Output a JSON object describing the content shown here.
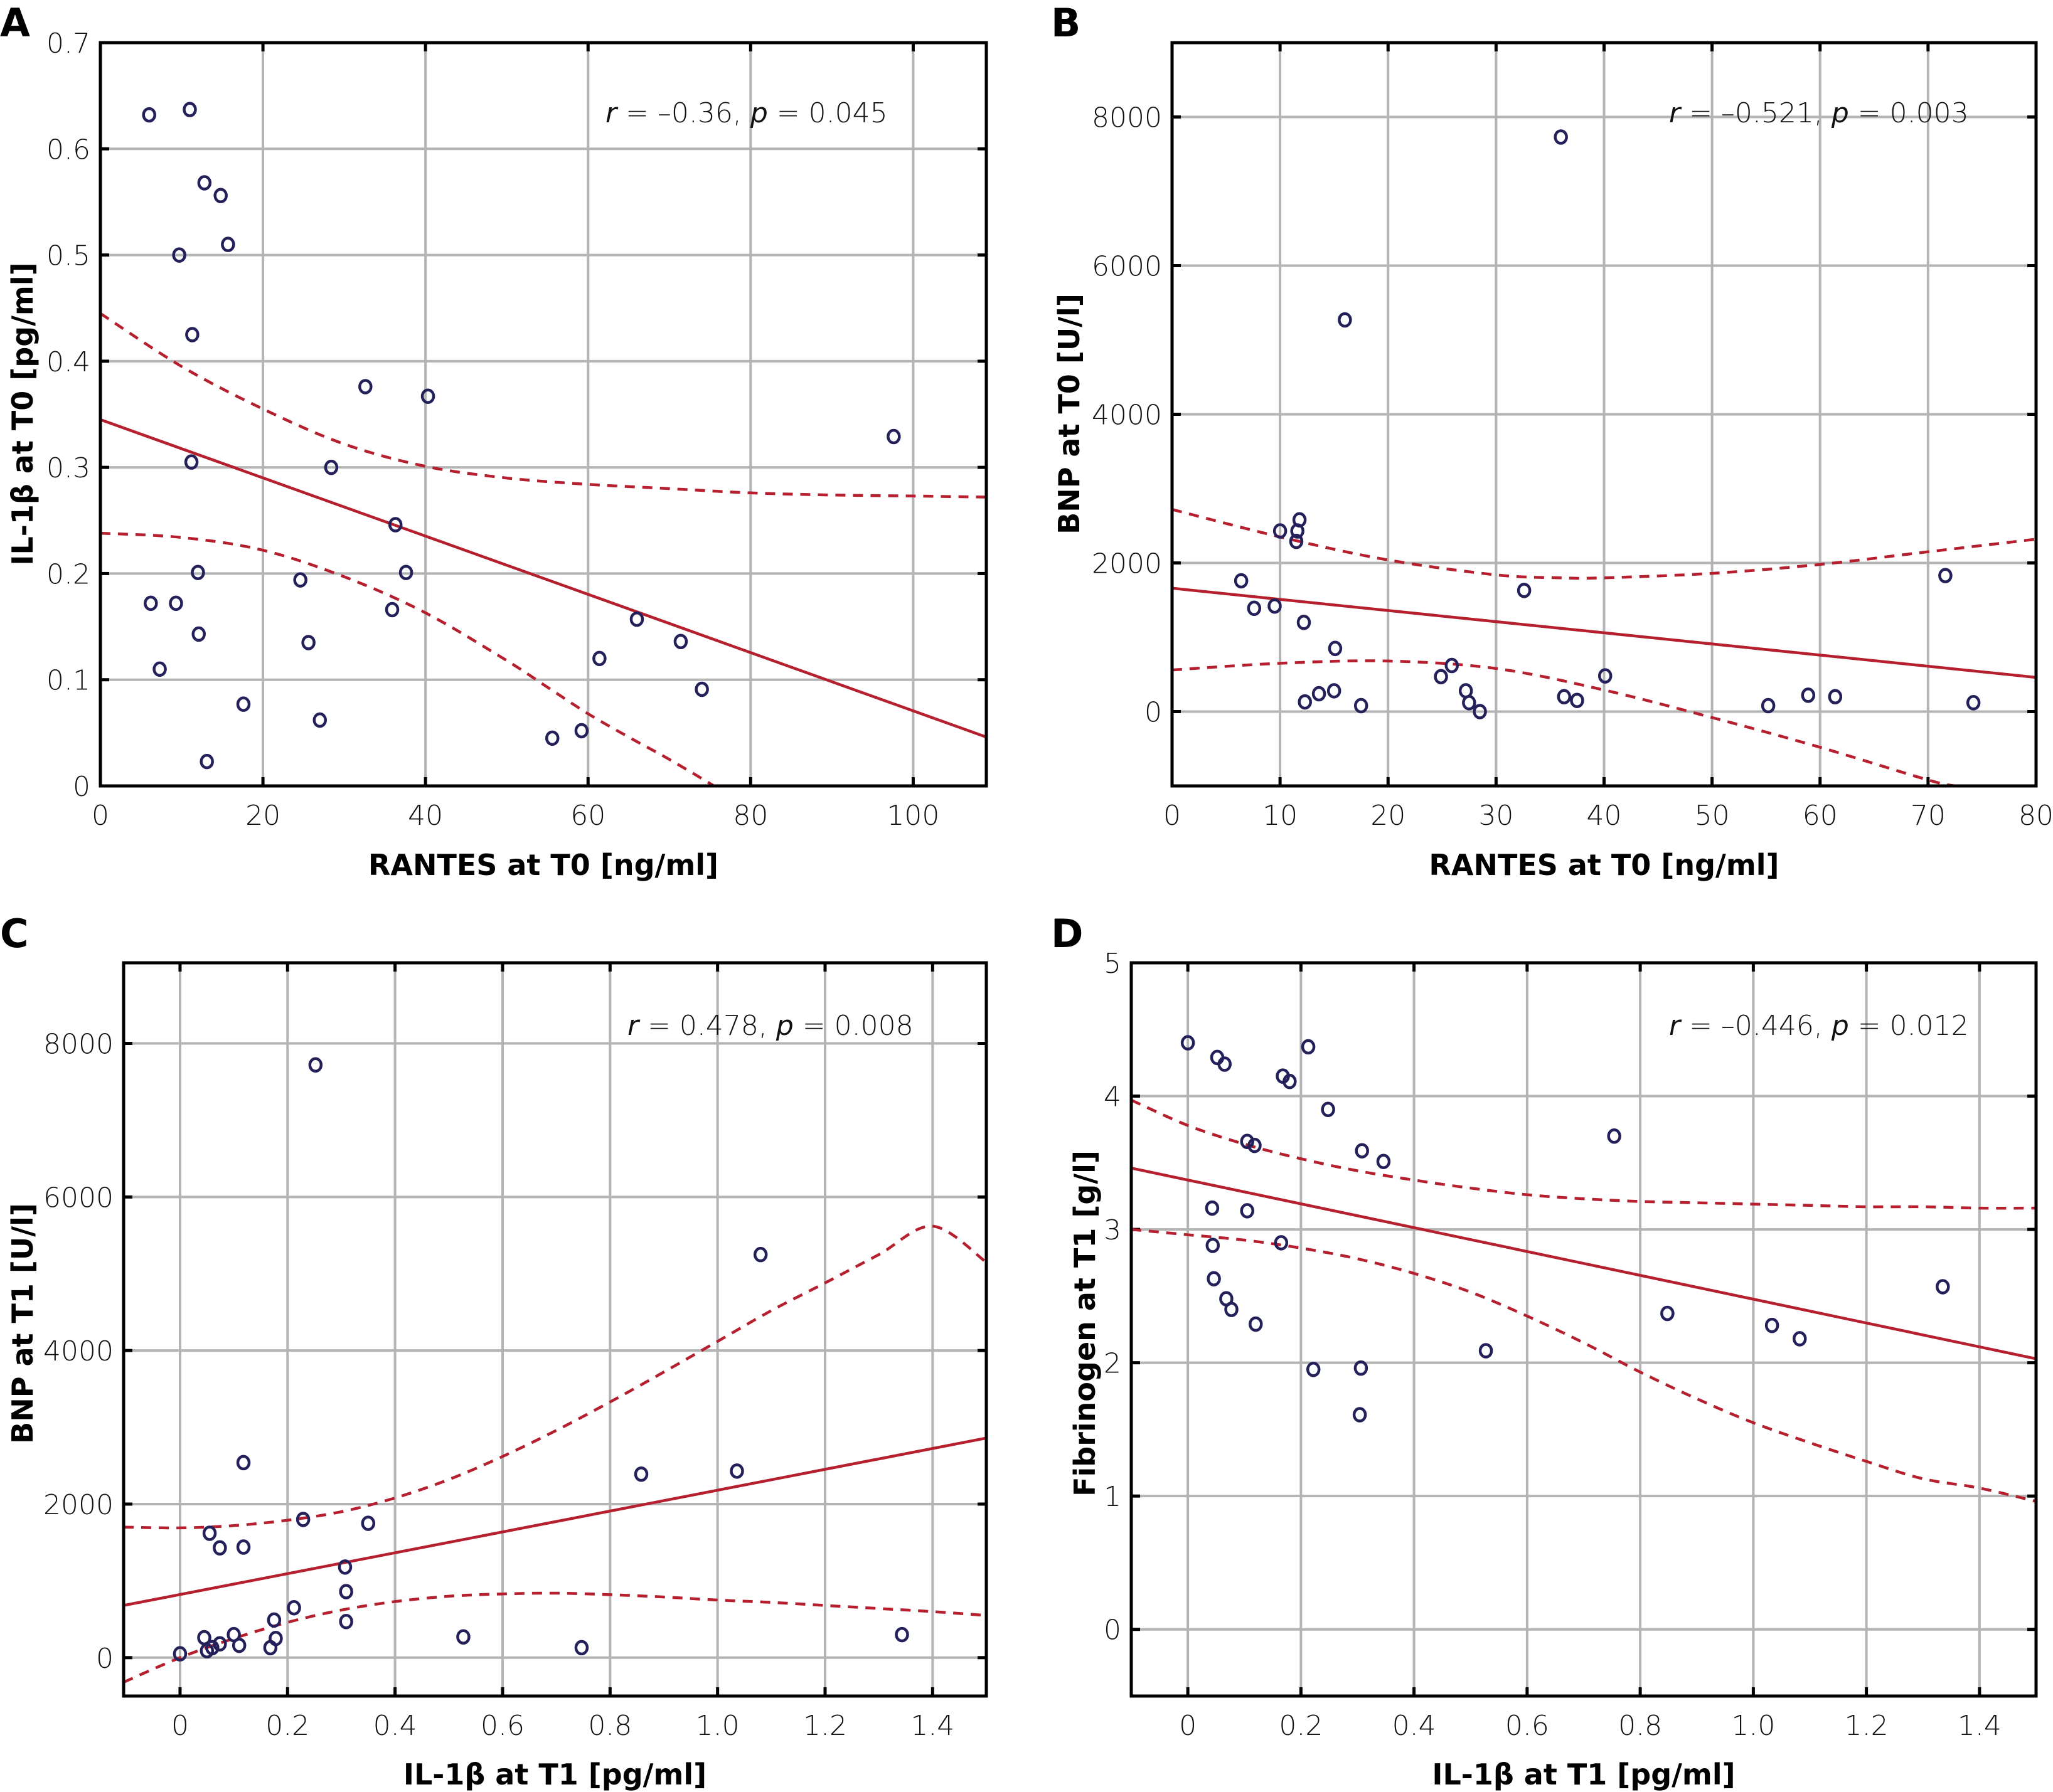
{
  "chart_data": [
    {
      "panel": "A",
      "type": "scatter",
      "title": "",
      "xlabel": "RANTES at T0 [ng/ml]",
      "ylabel": "IL-1β at T0 [pg/ml]",
      "xlim": [
        0,
        109
      ],
      "ylim": [
        0,
        0.7
      ],
      "xticks": [
        0,
        20,
        40,
        60,
        80,
        100
      ],
      "yticks": [
        0,
        0.1,
        0.2,
        0.3,
        0.4,
        0.5,
        0.6,
        0.7
      ],
      "xtick_labels": [
        "0",
        "20",
        "40",
        "60",
        "80",
        "100"
      ],
      "ytick_labels": [
        "0",
        "0.1",
        "0.2",
        "0.3",
        "0.4",
        "0.5",
        "0.6",
        "0.7"
      ],
      "grid": true,
      "annotation": {
        "r_label": "r",
        "r_value": "–0.36",
        "p_label": "p",
        "p_value": "0.045"
      },
      "points": [
        [
          6.0,
          0.632
        ],
        [
          11.0,
          0.637
        ],
        [
          12.8,
          0.568
        ],
        [
          14.8,
          0.556
        ],
        [
          15.7,
          0.51
        ],
        [
          9.7,
          0.5
        ],
        [
          11.3,
          0.425
        ],
        [
          11.2,
          0.305
        ],
        [
          12.0,
          0.201
        ],
        [
          6.2,
          0.172
        ],
        [
          9.3,
          0.172
        ],
        [
          12.1,
          0.143
        ],
        [
          7.3,
          0.11
        ],
        [
          17.6,
          0.077
        ],
        [
          13.1,
          0.023
        ],
        [
          32.6,
          0.376
        ],
        [
          40.3,
          0.367
        ],
        [
          28.4,
          0.3
        ],
        [
          36.3,
          0.246
        ],
        [
          37.6,
          0.201
        ],
        [
          24.6,
          0.194
        ],
        [
          35.9,
          0.166
        ],
        [
          25.6,
          0.135
        ],
        [
          27.0,
          0.062
        ],
        [
          55.6,
          0.045
        ],
        [
          59.2,
          0.052
        ],
        [
          61.4,
          0.12
        ],
        [
          66.0,
          0.157
        ],
        [
          71.4,
          0.136
        ],
        [
          74.0,
          0.091
        ],
        [
          97.6,
          0.329
        ]
      ],
      "fit_line": [
        [
          0,
          0.345
        ],
        [
          109,
          0.046
        ]
      ],
      "ci_upper": [
        [
          0,
          0.445
        ],
        [
          10,
          0.395
        ],
        [
          20,
          0.355
        ],
        [
          30,
          0.322
        ],
        [
          40,
          0.301
        ],
        [
          50,
          0.29
        ],
        [
          60,
          0.284
        ],
        [
          70,
          0.28
        ],
        [
          80,
          0.276
        ],
        [
          90,
          0.274
        ],
        [
          100,
          0.273
        ],
        [
          109,
          0.272
        ]
      ],
      "ci_lower": [
        [
          0,
          0.238
        ],
        [
          10,
          0.234
        ],
        [
          20,
          0.222
        ],
        [
          30,
          0.197
        ],
        [
          40,
          0.163
        ],
        [
          50,
          0.118
        ],
        [
          55,
          0.093
        ],
        [
          60,
          0.068
        ],
        [
          65,
          0.046
        ],
        [
          70,
          0.025
        ],
        [
          75.5,
          0.0
        ]
      ]
    },
    {
      "panel": "B",
      "type": "scatter",
      "title": "",
      "xlabel": "RANTES at T0 [ng/ml]",
      "ylabel": "BNP at T0 [U/l]",
      "xlim": [
        0,
        80
      ],
      "ylim": [
        -1000,
        9000
      ],
      "xticks": [
        0,
        10,
        20,
        30,
        40,
        50,
        60,
        70,
        80
      ],
      "yticks": [
        0,
        2000,
        4000,
        6000,
        8000
      ],
      "xtick_labels": [
        "0",
        "10",
        "20",
        "30",
        "40",
        "50",
        "60",
        "70",
        "80"
      ],
      "ytick_labels": [
        "0",
        "2000",
        "4000",
        "6000",
        "8000"
      ],
      "grid": true,
      "annotation": {
        "r_label": "r",
        "r_value": "–0.521",
        "p_label": "p",
        "p_value": "0.003"
      },
      "points": [
        [
          36.0,
          7730
        ],
        [
          16.0,
          5270
        ],
        [
          11.8,
          2580
        ],
        [
          10.0,
          2430
        ],
        [
          11.6,
          2430
        ],
        [
          11.5,
          2290
        ],
        [
          6.4,
          1760
        ],
        [
          7.6,
          1390
        ],
        [
          9.5,
          1420
        ],
        [
          12.2,
          1200
        ],
        [
          15.1,
          850
        ],
        [
          12.3,
          130
        ],
        [
          13.6,
          240
        ],
        [
          15.0,
          280
        ],
        [
          17.5,
          80
        ],
        [
          32.6,
          1630
        ],
        [
          24.9,
          470
        ],
        [
          25.9,
          620
        ],
        [
          27.2,
          280
        ],
        [
          27.5,
          120
        ],
        [
          28.5,
          0
        ],
        [
          36.3,
          200
        ],
        [
          37.5,
          150
        ],
        [
          40.1,
          480
        ],
        [
          55.2,
          80
        ],
        [
          58.9,
          220
        ],
        [
          61.4,
          200
        ],
        [
          71.6,
          1830
        ],
        [
          74.2,
          120
        ]
      ],
      "fit_line": [
        [
          0,
          1660
        ],
        [
          80,
          460
        ]
      ],
      "ci_upper": [
        [
          0,
          2720
        ],
        [
          10,
          2350
        ],
        [
          20,
          2040
        ],
        [
          30,
          1840
        ],
        [
          36,
          1800
        ],
        [
          40,
          1800
        ],
        [
          50,
          1860
        ],
        [
          60,
          1980
        ],
        [
          70,
          2150
        ],
        [
          80,
          2320
        ]
      ],
      "ci_lower": [
        [
          0,
          560
        ],
        [
          10,
          650
        ],
        [
          20,
          680
        ],
        [
          30,
          580
        ],
        [
          40,
          290
        ],
        [
          50,
          -80
        ],
        [
          60,
          -480
        ],
        [
          70,
          -920
        ],
        [
          72.5,
          -1000
        ]
      ]
    },
    {
      "panel": "C",
      "type": "scatter",
      "title": "",
      "xlabel": "IL-1β at T1 [pg/ml]",
      "ylabel": "BNP at T1 [U/l]",
      "xlim": [
        -0.105,
        1.5
      ],
      "ylim": [
        -500,
        9050
      ],
      "xticks": [
        0,
        0.2,
        0.4,
        0.6,
        0.8,
        1.0,
        1.2,
        1.4
      ],
      "yticks": [
        0,
        2000,
        4000,
        6000,
        8000
      ],
      "xtick_labels": [
        "0",
        "0.2",
        "0.4",
        "0.6",
        "0.8",
        "1.0",
        "1.2",
        "1.4"
      ],
      "ytick_labels": [
        "0",
        "2000",
        "4000",
        "6000",
        "8000"
      ],
      "grid": true,
      "annotation": {
        "r_label": "r",
        "r_value": "0.478",
        "p_label": "p",
        "p_value": "0.008"
      },
      "points": [
        [
          0.252,
          7720
        ],
        [
          1.08,
          5250
        ],
        [
          0.118,
          2540
        ],
        [
          0.858,
          2390
        ],
        [
          1.036,
          2430
        ],
        [
          0.229,
          1800
        ],
        [
          0.35,
          1750
        ],
        [
          0.055,
          1620
        ],
        [
          0.074,
          1430
        ],
        [
          0.118,
          1440
        ],
        [
          0.307,
          1180
        ],
        [
          0.309,
          860
        ],
        [
          0.212,
          650
        ],
        [
          0.175,
          490
        ],
        [
          0.309,
          470
        ],
        [
          0.527,
          270
        ],
        [
          0.747,
          130
        ],
        [
          1.343,
          300
        ],
        [
          0.0,
          50
        ],
        [
          0.045,
          260
        ],
        [
          0.05,
          90
        ],
        [
          0.06,
          130
        ],
        [
          0.074,
          180
        ],
        [
          0.1,
          300
        ],
        [
          0.11,
          160
        ],
        [
          0.168,
          130
        ],
        [
          0.178,
          250
        ]
      ],
      "fit_line": [
        [
          -0.105,
          680
        ],
        [
          1.5,
          2860
        ]
      ],
      "ci_upper": [
        [
          -0.105,
          1700
        ],
        [
          0,
          1690
        ],
        [
          0.1,
          1720
        ],
        [
          0.2,
          1790
        ],
        [
          0.3,
          1900
        ],
        [
          0.4,
          2080
        ],
        [
          0.5,
          2320
        ],
        [
          0.6,
          2620
        ],
        [
          0.7,
          2960
        ],
        [
          0.8,
          3330
        ],
        [
          0.9,
          3720
        ],
        [
          1.0,
          4120
        ],
        [
          1.1,
          4520
        ],
        [
          1.2,
          4880
        ],
        [
          1.3,
          5250
        ],
        [
          1.4,
          5620
        ],
        [
          1.5,
          5150
        ]
      ],
      "ci_lower": [
        [
          -0.105,
          -320
        ],
        [
          0,
          0
        ],
        [
          0.1,
          250
        ],
        [
          0.2,
          460
        ],
        [
          0.3,
          620
        ],
        [
          0.4,
          730
        ],
        [
          0.5,
          800
        ],
        [
          0.6,
          830
        ],
        [
          0.7,
          840
        ],
        [
          0.8,
          820
        ],
        [
          0.9,
          790
        ],
        [
          1.0,
          750
        ],
        [
          1.1,
          720
        ],
        [
          1.2,
          680
        ],
        [
          1.3,
          640
        ],
        [
          1.4,
          600
        ],
        [
          1.5,
          550
        ]
      ]
    },
    {
      "panel": "D",
      "type": "scatter",
      "title": "",
      "xlabel": "IL-1β at T1 [pg/ml]",
      "ylabel": "Fibrinogen at T1 [g/l]",
      "xlim": [
        -0.1,
        1.5
      ],
      "ylim": [
        -0.5,
        5
      ],
      "xticks": [
        0,
        0.2,
        0.4,
        0.6,
        0.8,
        1.0,
        1.2,
        1.4
      ],
      "yticks": [
        0,
        1,
        2,
        3,
        4,
        5
      ],
      "xtick_labels": [
        "0",
        "0.2",
        "0.4",
        "0.6",
        "0.8",
        "1.0",
        "1.2",
        "1.4"
      ],
      "ytick_labels": [
        "0",
        "1",
        "2",
        "3",
        "4",
        "5"
      ],
      "grid": true,
      "annotation": {
        "r_label": "r",
        "r_value": "–0.446",
        "p_label": "p",
        "p_value": "0.012"
      },
      "points": [
        [
          0.0,
          4.4
        ],
        [
          0.052,
          4.29
        ],
        [
          0.065,
          4.24
        ],
        [
          0.213,
          4.37
        ],
        [
          0.168,
          4.15
        ],
        [
          0.18,
          4.11
        ],
        [
          0.248,
          3.9
        ],
        [
          0.105,
          3.66
        ],
        [
          0.118,
          3.63
        ],
        [
          0.308,
          3.59
        ],
        [
          0.346,
          3.51
        ],
        [
          0.754,
          3.7
        ],
        [
          0.043,
          3.16
        ],
        [
          0.105,
          3.14
        ],
        [
          0.165,
          2.9
        ],
        [
          0.044,
          2.88
        ],
        [
          0.046,
          2.63
        ],
        [
          0.068,
          2.48
        ],
        [
          0.077,
          2.4
        ],
        [
          0.12,
          2.29
        ],
        [
          0.222,
          1.95
        ],
        [
          0.306,
          1.96
        ],
        [
          0.304,
          1.61
        ],
        [
          0.527,
          2.09
        ],
        [
          0.848,
          2.37
        ],
        [
          1.033,
          2.28
        ],
        [
          1.082,
          2.18
        ],
        [
          1.335,
          2.57
        ]
      ],
      "fit_line": [
        [
          -0.1,
          3.46
        ],
        [
          1.5,
          2.03
        ]
      ],
      "ci_upper": [
        [
          -0.1,
          3.97
        ],
        [
          0,
          3.78
        ],
        [
          0.1,
          3.64
        ],
        [
          0.2,
          3.53
        ],
        [
          0.3,
          3.44
        ],
        [
          0.4,
          3.37
        ],
        [
          0.5,
          3.31
        ],
        [
          0.6,
          3.26
        ],
        [
          0.7,
          3.23
        ],
        [
          0.8,
          3.21
        ],
        [
          0.9,
          3.2
        ],
        [
          1.0,
          3.19
        ],
        [
          1.1,
          3.18
        ],
        [
          1.2,
          3.17
        ],
        [
          1.3,
          3.17
        ],
        [
          1.4,
          3.16
        ],
        [
          1.5,
          3.16
        ]
      ],
      "ci_lower": [
        [
          -0.1,
          3.0
        ],
        [
          0,
          2.96
        ],
        [
          0.1,
          2.92
        ],
        [
          0.2,
          2.86
        ],
        [
          0.3,
          2.78
        ],
        [
          0.4,
          2.67
        ],
        [
          0.5,
          2.53
        ],
        [
          0.6,
          2.35
        ],
        [
          0.7,
          2.15
        ],
        [
          0.8,
          1.93
        ],
        [
          0.9,
          1.73
        ],
        [
          1.0,
          1.55
        ],
        [
          1.1,
          1.4
        ],
        [
          1.2,
          1.26
        ],
        [
          1.3,
          1.13
        ],
        [
          1.4,
          1.06
        ],
        [
          1.5,
          0.96
        ]
      ]
    }
  ]
}
